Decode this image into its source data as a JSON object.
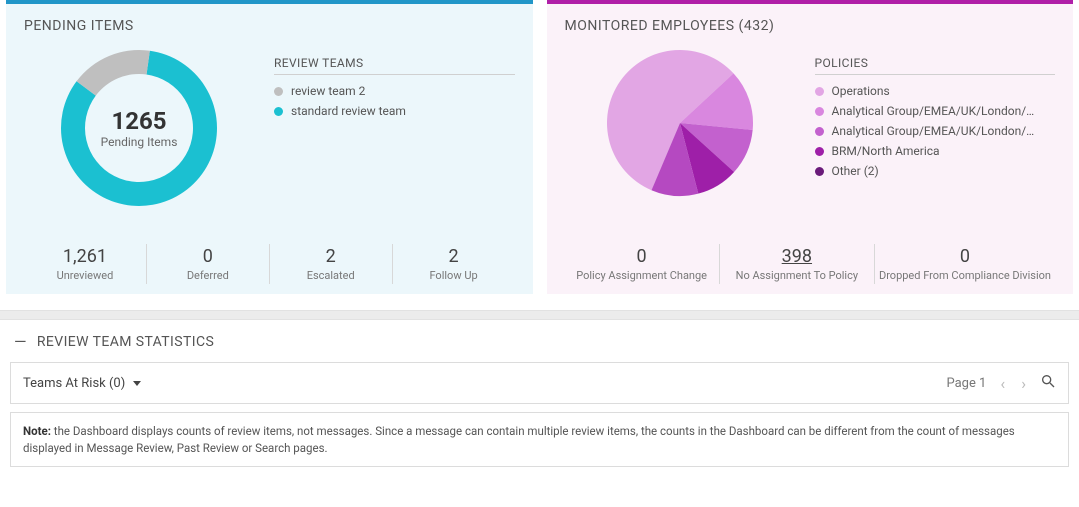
{
  "pending": {
    "title": "PENDING ITEMS",
    "donut": {
      "value": "1265",
      "label": "Pending Items",
      "type": "donut",
      "size": 160,
      "thickness": 24,
      "background_color": "#ecf7fb",
      "series": [
        {
          "value": 1050,
          "color": "#1bc0d1"
        },
        {
          "value": 215,
          "color": "#bfbfbf"
        }
      ]
    },
    "legend_title": "REVIEW TEAMS",
    "legend": [
      {
        "label": "review team 2",
        "color": "#bfbfbf"
      },
      {
        "label": "standard review team",
        "color": "#1bc0d1"
      }
    ],
    "stats": [
      {
        "value": "1,261",
        "label": "Unreviewed",
        "link": false
      },
      {
        "value": "0",
        "label": "Deferred",
        "link": false
      },
      {
        "value": "2",
        "label": "Escalated",
        "link": false
      },
      {
        "value": "2",
        "label": "Follow Up",
        "link": false
      }
    ]
  },
  "monitored": {
    "title": "MONITORED EMPLOYEES (432)",
    "pie": {
      "type": "pie",
      "size": 150,
      "background_color": "#fbf2f9",
      "series": [
        {
          "value": 245,
          "color": "#e2a6e4"
        },
        {
          "value": 58,
          "color": "#d987df"
        },
        {
          "value": 44,
          "color": "#c361ce"
        },
        {
          "value": 40,
          "color": "#9e1fa8"
        },
        {
          "value": 45,
          "color": "#b549c1"
        }
      ]
    },
    "legend_title": "POLICIES",
    "legend": [
      {
        "label": "Operations",
        "color": "#e2a6e4"
      },
      {
        "label": "Analytical Group/EMEA/UK/London/…",
        "color": "#d987df"
      },
      {
        "label": "Analytical Group/EMEA/UK/London/…",
        "color": "#c361ce"
      },
      {
        "label": "BRM/North America",
        "color": "#9e1fa8"
      },
      {
        "label": "Other (2)",
        "color": "#6a1b7a"
      }
    ],
    "stats": [
      {
        "value": "0",
        "label": "Policy Assignment Change",
        "link": false
      },
      {
        "value": "398",
        "label": "No Assignment To Policy",
        "link": true
      },
      {
        "value": "0",
        "label": "Dropped From Compliance Division",
        "link": false
      }
    ]
  },
  "review_section": {
    "title": "REVIEW TEAM STATISTICS",
    "dropdown_label": "Teams At Risk (0)",
    "page_label": "Page 1"
  },
  "note": {
    "bold": "Note:",
    "text": " the Dashboard displays counts of review items, not messages. Since a message can contain multiple review items, the counts in the Dashboard can be different from the count of messages displayed in Message Review, Past Review or Search pages."
  }
}
